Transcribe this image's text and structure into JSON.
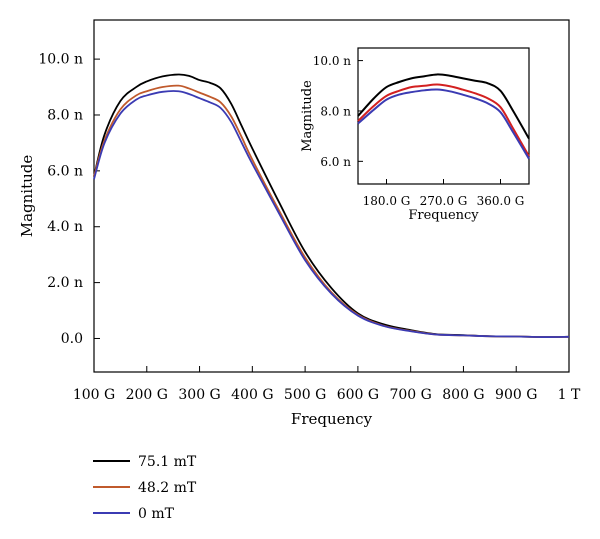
{
  "chart_data": [
    {
      "type": "line",
      "title": "",
      "xlabel": "Frequency",
      "ylabel": "Magnitude",
      "xlim": [
        100,
        1000
      ],
      "ylim": [
        -1.2,
        11.4
      ],
      "x_unit": "GHz",
      "y_unit": "n",
      "x_ticks": [
        100,
        200,
        300,
        400,
        500,
        600,
        700,
        800,
        900,
        1000
      ],
      "x_tick_labels": [
        "100 G",
        "200 G",
        "300 G",
        "400 G",
        "500 G",
        "600 G",
        "700 G",
        "800 G",
        "900 G",
        "1 T"
      ],
      "y_ticks": [
        0,
        2,
        4,
        6,
        8,
        10
      ],
      "y_tick_labels": [
        "0.0",
        "2.0 n",
        "4.0 n",
        "6.0 n",
        "8.0 n",
        "10.0 n"
      ],
      "legend_position": "bottom-left",
      "grid": false,
      "series": [
        {
          "name": "75.1 mT",
          "color": "#000000",
          "x": [
            100,
            120,
            150,
            180,
            200,
            230,
            260,
            280,
            300,
            320,
            340,
            360,
            380,
            400,
            450,
            500,
            550,
            600,
            650,
            700,
            750,
            800,
            850,
            900,
            950,
            1000
          ],
          "y": [
            5.8,
            7.3,
            8.5,
            9.0,
            9.2,
            9.38,
            9.45,
            9.4,
            9.25,
            9.15,
            8.95,
            8.4,
            7.6,
            6.8,
            4.9,
            3.1,
            1.8,
            0.9,
            0.5,
            0.3,
            0.15,
            0.12,
            0.08,
            0.07,
            0.05,
            0.06
          ]
        },
        {
          "name": "48.2 mT",
          "color": "#c05a2c",
          "x": [
            100,
            120,
            150,
            180,
            200,
            230,
            260,
            280,
            300,
            320,
            340,
            360,
            380,
            400,
            450,
            500,
            550,
            600,
            650,
            700,
            750,
            800,
            850,
            900,
            950,
            1000
          ],
          "y": [
            5.8,
            7.1,
            8.2,
            8.7,
            8.85,
            9.0,
            9.05,
            8.95,
            8.8,
            8.65,
            8.45,
            7.95,
            7.2,
            6.4,
            4.6,
            2.9,
            1.65,
            0.85,
            0.45,
            0.27,
            0.14,
            0.11,
            0.08,
            0.07,
            0.05,
            0.06
          ]
        },
        {
          "name": "0 mT",
          "color": "#3b3bb3",
          "x": [
            100,
            120,
            150,
            180,
            200,
            230,
            260,
            280,
            300,
            320,
            340,
            360,
            380,
            400,
            450,
            500,
            550,
            600,
            650,
            700,
            750,
            800,
            850,
            900,
            950,
            1000
          ],
          "y": [
            5.7,
            7.0,
            8.05,
            8.55,
            8.7,
            8.83,
            8.85,
            8.75,
            8.6,
            8.45,
            8.25,
            7.75,
            7.0,
            6.25,
            4.5,
            2.8,
            1.6,
            0.82,
            0.44,
            0.26,
            0.14,
            0.11,
            0.08,
            0.07,
            0.05,
            0.06
          ]
        }
      ]
    },
    {
      "type": "line",
      "title": "",
      "xlabel": "Frequency",
      "ylabel": "Magnitude",
      "xlim": [
        135,
        405
      ],
      "ylim": [
        5.1,
        10.5
      ],
      "x_ticks": [
        180,
        270,
        360
      ],
      "x_tick_labels": [
        "180.0 G",
        "270.0 G",
        "360.0 G"
      ],
      "y_ticks": [
        6,
        8,
        10
      ],
      "y_tick_labels": [
        "6.0 n",
        "8.0 n",
        "10.0 n"
      ],
      "grid": false,
      "series": [
        {
          "name": "75.1 mT",
          "color": "#000000",
          "x": [
            135,
            160,
            180,
            200,
            220,
            240,
            260,
            280,
            300,
            320,
            340,
            360,
            380,
            405
          ],
          "y": [
            7.8,
            8.5,
            8.95,
            9.15,
            9.3,
            9.38,
            9.45,
            9.4,
            9.3,
            9.2,
            9.1,
            8.8,
            8.0,
            6.9
          ]
        },
        {
          "name": "48.2 mT",
          "color": "#d32020",
          "x": [
            135,
            160,
            180,
            200,
            220,
            240,
            260,
            280,
            300,
            320,
            340,
            360,
            380,
            405
          ],
          "y": [
            7.6,
            8.2,
            8.6,
            8.8,
            8.95,
            9.0,
            9.05,
            8.98,
            8.85,
            8.7,
            8.5,
            8.15,
            7.3,
            6.2
          ]
        },
        {
          "name": "0 mT",
          "color": "#3b3bb3",
          "x": [
            135,
            160,
            180,
            200,
            220,
            240,
            260,
            280,
            300,
            320,
            340,
            360,
            380,
            405
          ],
          "y": [
            7.5,
            8.05,
            8.45,
            8.65,
            8.75,
            8.82,
            8.85,
            8.78,
            8.65,
            8.5,
            8.3,
            7.95,
            7.15,
            6.1
          ]
        }
      ]
    }
  ]
}
